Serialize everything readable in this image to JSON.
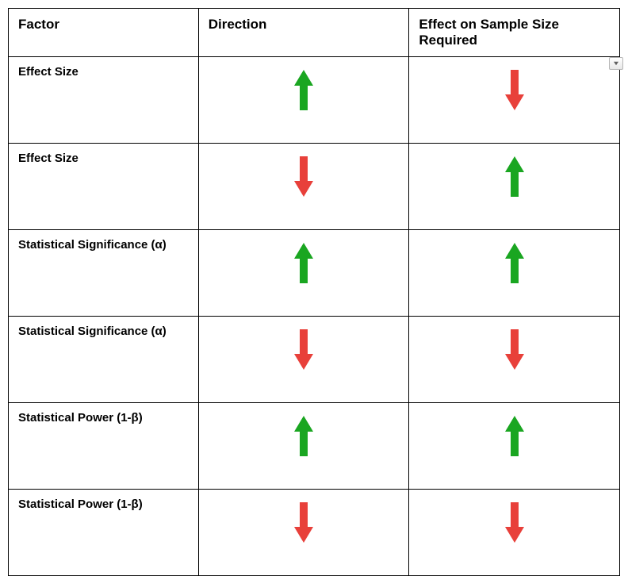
{
  "colors": {
    "green": "#1aa621",
    "red": "#e8403a",
    "border": "#000000",
    "background": "#ffffff"
  },
  "arrow": {
    "width": 28,
    "height": 55
  },
  "columns": [
    {
      "label": "Factor"
    },
    {
      "label": "Direction"
    },
    {
      "label": "Effect on Sample Size Required"
    }
  ],
  "rows": [
    {
      "factor": "Effect Size",
      "direction": "up",
      "direction_color": "green",
      "effect": "down",
      "effect_color": "red"
    },
    {
      "factor": "Effect Size",
      "direction": "down",
      "direction_color": "red",
      "effect": "up",
      "effect_color": "green"
    },
    {
      "factor": "Statistical Significance (α)",
      "direction": "up",
      "direction_color": "green",
      "effect": "up",
      "effect_color": "green"
    },
    {
      "factor": "Statistical Significance (α)",
      "direction": "down",
      "direction_color": "red",
      "effect": "down",
      "effect_color": "red"
    },
    {
      "factor": "Statistical Power (1-β)",
      "direction": "up",
      "direction_color": "green",
      "effect": "up",
      "effect_color": "green"
    },
    {
      "factor": "Statistical Power (1-β)",
      "direction": "down",
      "direction_color": "red",
      "effect": "down",
      "effect_color": "red"
    }
  ]
}
